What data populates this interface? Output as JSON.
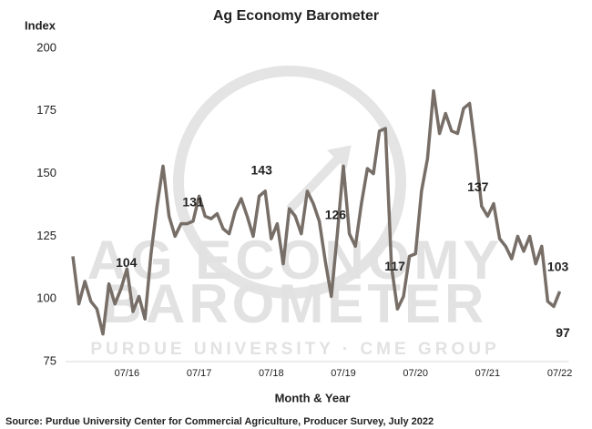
{
  "chart_data": {
    "type": "line",
    "title": "Ag Economy Barometer",
    "y_label": "Index",
    "x_label": "Month & Year",
    "source": "Source: Purdue University Center for Commercial Agriculture, Producer Survey, July 2022",
    "watermark": {
      "line1": "AG ECONOMY",
      "line2": "BAROMETER",
      "line3": "PURDUE UNIVERSITY · CME GROUP"
    },
    "categories": [
      null,
      null,
      null,
      null,
      null,
      null,
      null,
      null,
      null,
      "07/16",
      null,
      null,
      null,
      null,
      null,
      null,
      null,
      null,
      null,
      null,
      null,
      "07/17",
      null,
      null,
      null,
      null,
      null,
      null,
      null,
      null,
      null,
      null,
      null,
      "07/18",
      null,
      null,
      null,
      null,
      null,
      null,
      null,
      null,
      null,
      null,
      null,
      "07/19",
      null,
      null,
      null,
      null,
      null,
      null,
      null,
      null,
      null,
      null,
      null,
      "07/20",
      null,
      null,
      null,
      null,
      null,
      null,
      null,
      null,
      null,
      null,
      null,
      "07/21",
      null,
      null,
      null,
      null,
      null,
      null,
      null,
      null,
      null,
      null,
      null,
      "07/22"
    ],
    "series": [
      {
        "name": "Ag Economy Barometer",
        "color": "#776e67",
        "values": [
          117,
          98,
          107,
          99,
          96,
          86,
          106,
          98,
          104,
          112,
          95,
          101,
          92,
          118,
          137,
          153,
          133,
          125,
          130,
          130,
          131,
          141,
          133,
          132,
          134,
          128,
          126,
          135,
          140,
          133,
          125,
          141,
          143,
          124,
          130,
          114,
          136,
          133,
          126,
          143,
          138,
          131,
          115,
          101,
          126,
          153,
          126,
          121,
          138,
          152,
          150,
          167,
          168,
          113,
          96,
          101,
          117,
          118,
          143,
          156,
          183,
          166,
          174,
          167,
          166,
          176,
          178,
          159,
          137,
          133,
          138,
          124,
          121,
          116,
          125,
          119,
          125,
          114,
          121,
          99,
          97,
          103
        ],
        "value_labels": [
          null,
          null,
          null,
          null,
          null,
          null,
          null,
          null,
          "104",
          null,
          null,
          null,
          null,
          null,
          null,
          null,
          null,
          null,
          null,
          null,
          "131",
          null,
          null,
          null,
          null,
          null,
          null,
          null,
          null,
          null,
          null,
          null,
          "143",
          null,
          null,
          null,
          null,
          null,
          null,
          null,
          null,
          null,
          null,
          null,
          "126",
          null,
          null,
          null,
          null,
          null,
          null,
          null,
          null,
          null,
          null,
          null,
          "117",
          null,
          null,
          null,
          null,
          null,
          null,
          null,
          null,
          null,
          null,
          null,
          "137",
          null,
          null,
          null,
          null,
          null,
          null,
          null,
          null,
          null,
          null,
          null,
          "97",
          "103"
        ]
      }
    ],
    "ylim": [
      75,
      200
    ],
    "yticks": [
      75,
      100,
      125,
      150,
      175,
      200
    ],
    "grid": false
  }
}
